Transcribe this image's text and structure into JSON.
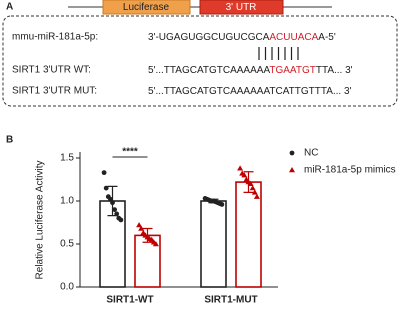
{
  "panel_a": {
    "label": "A",
    "boxes": [
      "Luciferase",
      "3' UTR"
    ],
    "rows": [
      {
        "name": "mmu-miR-181a-5p:",
        "parts": [
          "3'-UGAGUGGCUGUCGCA",
          "ACUUACA",
          "A-5'"
        ]
      },
      {
        "name": "SIRT1 3'UTR  WT:",
        "parts": [
          "5'...TTAGCATGTCAAAAAA",
          "TGAATGT",
          "TTA... 3'"
        ]
      },
      {
        "name": "SIRT1 3'UTR  MUT:",
        "parts": [
          "5'...TTAGCATGTCAAAAAATCATTGTTTA... 3'"
        ]
      }
    ]
  },
  "chart_data": {
    "type": "bar",
    "panel_label": "B",
    "ylabel": "Relative Luciferase Activity",
    "categories": [
      "SIRT1-WT",
      "SIRT1-MUT"
    ],
    "series": [
      {
        "name": "NC",
        "color": "#222222",
        "marker": "circle",
        "values": [
          1.0,
          1.0
        ],
        "errors": [
          0.17,
          0.02
        ],
        "points": [
          [
            1.33,
            1.15,
            1.05,
            1.02,
            0.98,
            0.9,
            0.85,
            0.8,
            0.78
          ],
          [
            1.03,
            1.02,
            1.01,
            1.0,
            1.0,
            0.99,
            0.98,
            0.97,
            0.96
          ]
        ]
      },
      {
        "name": "miR-181a-5p mimics",
        "color": "#c00000",
        "marker": "triangle",
        "values": [
          0.6,
          1.22
        ],
        "errors": [
          0.08,
          0.12
        ],
        "points": [
          [
            0.72,
            0.68,
            0.63,
            0.6,
            0.58,
            0.56,
            0.55,
            0.52,
            0.5
          ],
          [
            1.38,
            1.32,
            1.3,
            1.25,
            1.22,
            1.2,
            1.15,
            1.1,
            1.05
          ]
        ]
      }
    ],
    "annotation": "****",
    "ylim": [
      0,
      1.5
    ],
    "yticks": [
      {
        "value": 0,
        "label": "0.0"
      },
      0.5,
      {
        "value": 1,
        "label": "1.0"
      },
      1.5
    ]
  }
}
